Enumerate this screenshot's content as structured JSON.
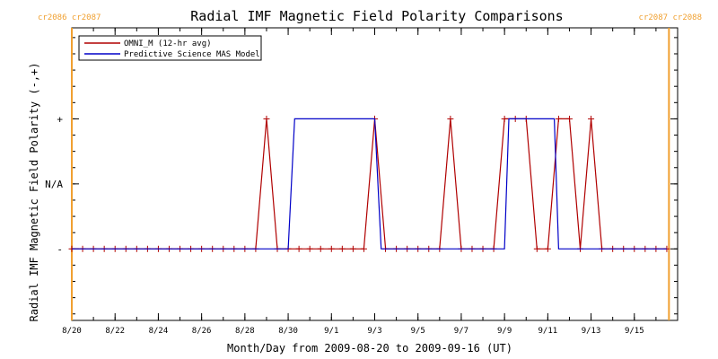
{
  "chart_data": {
    "type": "line",
    "title": "Radial IMF Magnetic Field Polarity Comparisons",
    "xlabel": "Month/Day from 2009-08-20 to 2009-09-16 (UT)",
    "ylabel": "Radial IMF Magnetic Field Polarity (-,+)",
    "xlim": [
      0,
      28
    ],
    "ylim": [
      -2.1,
      2.4
    ],
    "yticks": [
      {
        "value": -1,
        "label": "-"
      },
      {
        "value": 0,
        "label": "N/A"
      },
      {
        "value": 1,
        "label": "+"
      }
    ],
    "xticks": [
      {
        "value": 0,
        "label": "8/20"
      },
      {
        "value": 2,
        "label": "8/22"
      },
      {
        "value": 4,
        "label": "8/24"
      },
      {
        "value": 6,
        "label": "8/26"
      },
      {
        "value": 8,
        "label": "8/28"
      },
      {
        "value": 10,
        "label": "8/30"
      },
      {
        "value": 12,
        "label": "9/1"
      },
      {
        "value": 14,
        "label": "9/3"
      },
      {
        "value": 16,
        "label": "9/5"
      },
      {
        "value": 18,
        "label": "9/7"
      },
      {
        "value": 20,
        "label": "9/9"
      },
      {
        "value": 22,
        "label": "9/11"
      },
      {
        "value": 24,
        "label": "9/13"
      },
      {
        "value": 26,
        "label": "9/15"
      }
    ],
    "carrington": {
      "left_label": "cr2086 cr2087",
      "right_label": "cr2087 cr2088",
      "color": "#f0a030",
      "boundaries": [
        0,
        27.6
      ]
    },
    "legend_position": "top-left",
    "series": [
      {
        "name": "OMNI_M (12-hr avg)",
        "color": "#b00000",
        "marker": "+",
        "x": [
          0,
          0.5,
          1,
          1.5,
          2,
          2.5,
          3,
          3.5,
          4,
          4.5,
          5,
          5.5,
          6,
          6.5,
          7,
          7.5,
          8,
          8.5,
          9,
          9.5,
          10,
          10.5,
          11,
          11.5,
          12,
          12.5,
          13,
          13.5,
          14,
          14.5,
          15,
          15.5,
          16,
          16.5,
          17,
          17.5,
          18,
          18.5,
          19,
          19.5,
          20,
          20.5,
          21,
          21.5,
          22,
          22.5,
          23,
          23.5,
          24,
          24.5,
          25,
          25.5,
          26,
          26.5,
          27,
          27.5
        ],
        "y": [
          -1,
          -1,
          -1,
          -1,
          -1,
          -1,
          -1,
          -1,
          -1,
          -1,
          -1,
          -1,
          -1,
          -1,
          -1,
          -1,
          -1,
          -1,
          1,
          -1,
          -1,
          -1,
          -1,
          -1,
          -1,
          -1,
          -1,
          -1,
          1,
          -1,
          -1,
          -1,
          -1,
          -1,
          -1,
          1,
          -1,
          -1,
          -1,
          -1,
          1,
          1,
          1,
          -1,
          -1,
          1,
          1,
          -1,
          1,
          -1,
          -1,
          -1,
          -1,
          -1,
          -1,
          -1
        ]
      },
      {
        "name": "Predictive Science MAS Model",
        "color": "#0000c8",
        "marker": "none",
        "x": [
          0,
          10.0,
          10.3,
          14.0,
          14.3,
          20.0,
          20.2,
          22.3,
          22.5,
          27.5
        ],
        "y": [
          -1,
          -1,
          1,
          1,
          -1,
          -1,
          1,
          1,
          -1,
          -1
        ]
      }
    ]
  }
}
